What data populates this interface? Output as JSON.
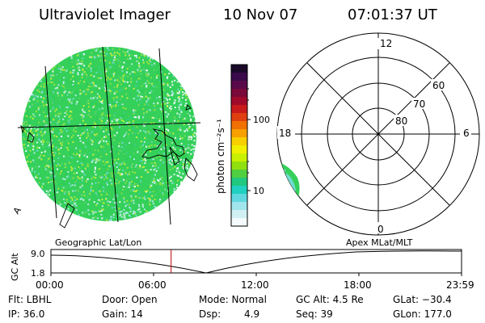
{
  "header": {
    "instrument": "Ultraviolet Imager",
    "date": "10 Nov 07",
    "time": "07:01:37 UT"
  },
  "colorbar": {
    "unit_label": "photon cm⁻²s⁻¹",
    "ticks": [
      "100",
      "10"
    ],
    "colors": [
      "#1a0a2a",
      "#3a0a4a",
      "#5a0a4a",
      "#7a0a3a",
      "#a00a2a",
      "#c81a1a",
      "#e04010",
      "#f07000",
      "#f8a000",
      "#f8d000",
      "#f0f000",
      "#c8f000",
      "#90e010",
      "#50d040",
      "#20c880",
      "#20d0c0",
      "#60d8e0",
      "#a0e4ec",
      "#d0f0f4",
      "#f4fbfc"
    ]
  },
  "left_map": {
    "label": "Geographic Lat/Lon",
    "coast_mark": "A"
  },
  "right_map": {
    "label": "Apex MLat/MLT",
    "mlt_labels": {
      "top": "12",
      "left": "18",
      "right": "6",
      "bottom": "0"
    },
    "lat_labels": [
      "60",
      "70",
      "80"
    ]
  },
  "timeline": {
    "ylabel": "GC Alt",
    "ytick_top": "9.0",
    "ytick_bottom": "1.8",
    "xticks": [
      "00:00",
      "06:00",
      "12:00",
      "18:00",
      "23:59"
    ],
    "current_fraction": 0.2928
  },
  "status": {
    "row1": {
      "flt": "Flt: LBHL",
      "door": "Door: Open",
      "mode": "Mode: Normal",
      "gcalt": "GC Alt: 4.5 Re",
      "glat": "GLat: −30.4"
    },
    "row2": {
      "ip": "IP: 36.0",
      "gain": "Gain: 14",
      "dsp_label": "Dsp:",
      "dsp_value": "4.9",
      "seq": "Seq: 39",
      "glon": "GLon: 177.0"
    }
  }
}
